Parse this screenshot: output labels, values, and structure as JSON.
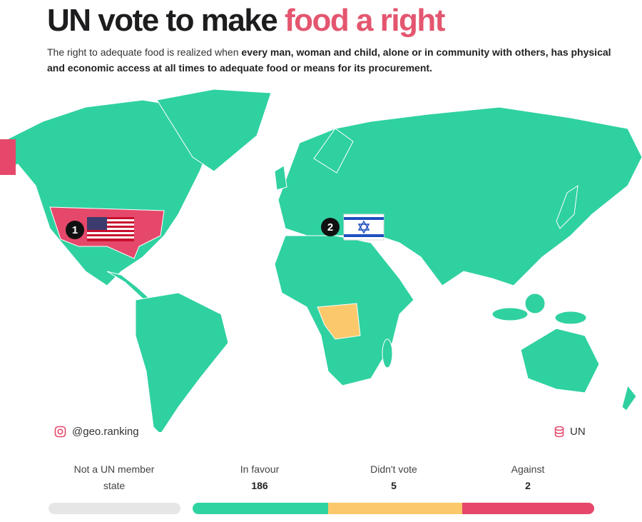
{
  "header": {
    "title": "UN vote to make",
    "title_highlight": "food a right",
    "subtitle_intro": "The right to adequate food is realized when",
    "subtitle_emphasis": "every man, woman and child, alone or in community with others, has physical and economic access at all times to adequate food or means for its procurement."
  },
  "map": {
    "markers": [
      "1",
      "2"
    ]
  },
  "credits": {
    "handle": "@geo.ranking",
    "source": "UN"
  },
  "legend": [
    {
      "label": "Not a UN member state",
      "color": "#e6e6e6"
    },
    {
      "label": "In favour",
      "count": 186,
      "color": "#2fd3a1"
    },
    {
      "label": "Didn't vote",
      "count": 5,
      "color": "#fbc96b"
    },
    {
      "label": "Against",
      "count": 2,
      "color": "#e5486b"
    }
  ]
}
